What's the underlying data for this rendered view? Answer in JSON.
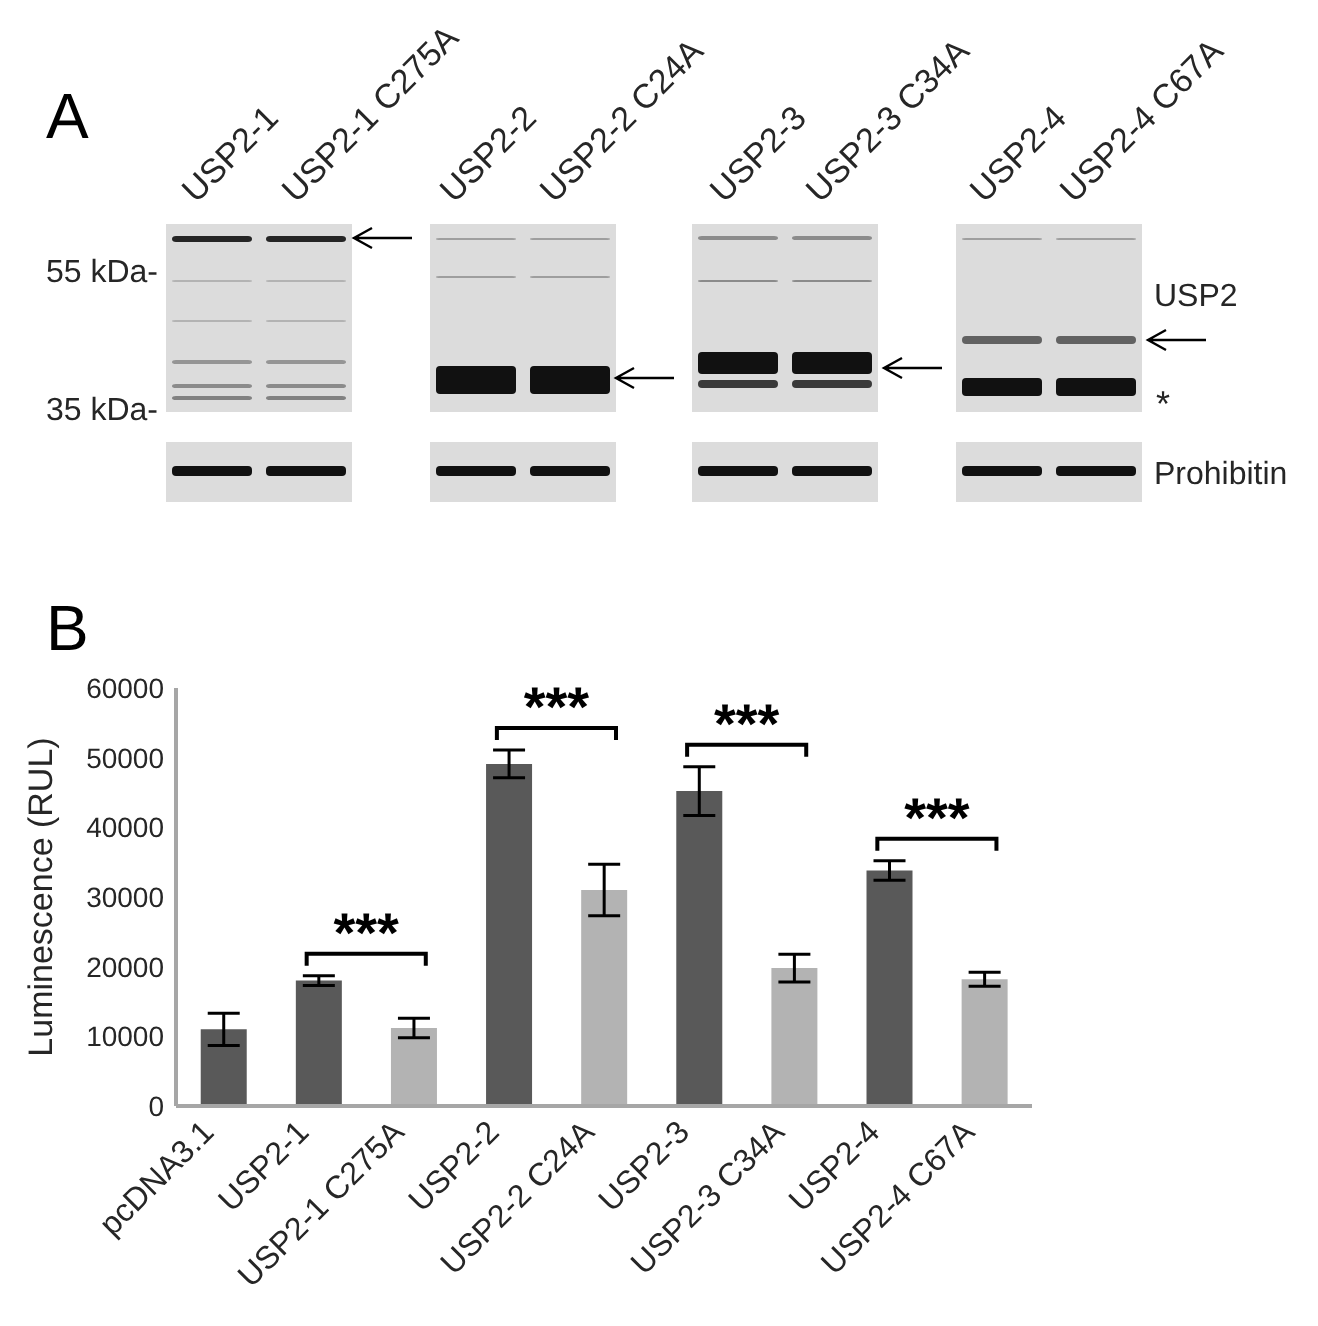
{
  "chart_data": [
    {
      "type": "other",
      "title": "A",
      "annotations": [
        "USP2-1",
        "USP2-1 C275A",
        "USP2-2",
        "USP2-2 C24A",
        "USP2-3",
        "USP2-3 C34A",
        "USP2-4",
        "USP2-4 C67A",
        "55 kDa-",
        "35 kDa-",
        "USP2",
        "*",
        "Prohibitin"
      ]
    },
    {
      "type": "bar",
      "title": "B",
      "ylabel": "Luminescence (RUL)",
      "categories": [
        "pcDNA3.1",
        "USP2-1",
        "USP2-1 C275A",
        "USP2-2",
        "USP2-2 C24A",
        "USP2-3",
        "USP2-3 C34A",
        "USP2-4",
        "USP2-4 C67A"
      ],
      "values": [
        11000,
        18000,
        11200,
        49100,
        31000,
        45200,
        19800,
        33800,
        18200
      ],
      "errors": [
        2300,
        700,
        1400,
        2000,
        3700,
        3500,
        2000,
        1400,
        1000
      ],
      "colors": [
        "#595959",
        "#595959",
        "#b3b3b3",
        "#595959",
        "#b3b3b3",
        "#595959",
        "#b3b3b3",
        "#595959",
        "#b3b3b3"
      ],
      "ylim": [
        0,
        60000
      ],
      "yticks": [
        0,
        10000,
        20000,
        30000,
        40000,
        50000,
        60000
      ],
      "annotations": [
        "***",
        "***",
        "***",
        "***"
      ]
    }
  ]
}
